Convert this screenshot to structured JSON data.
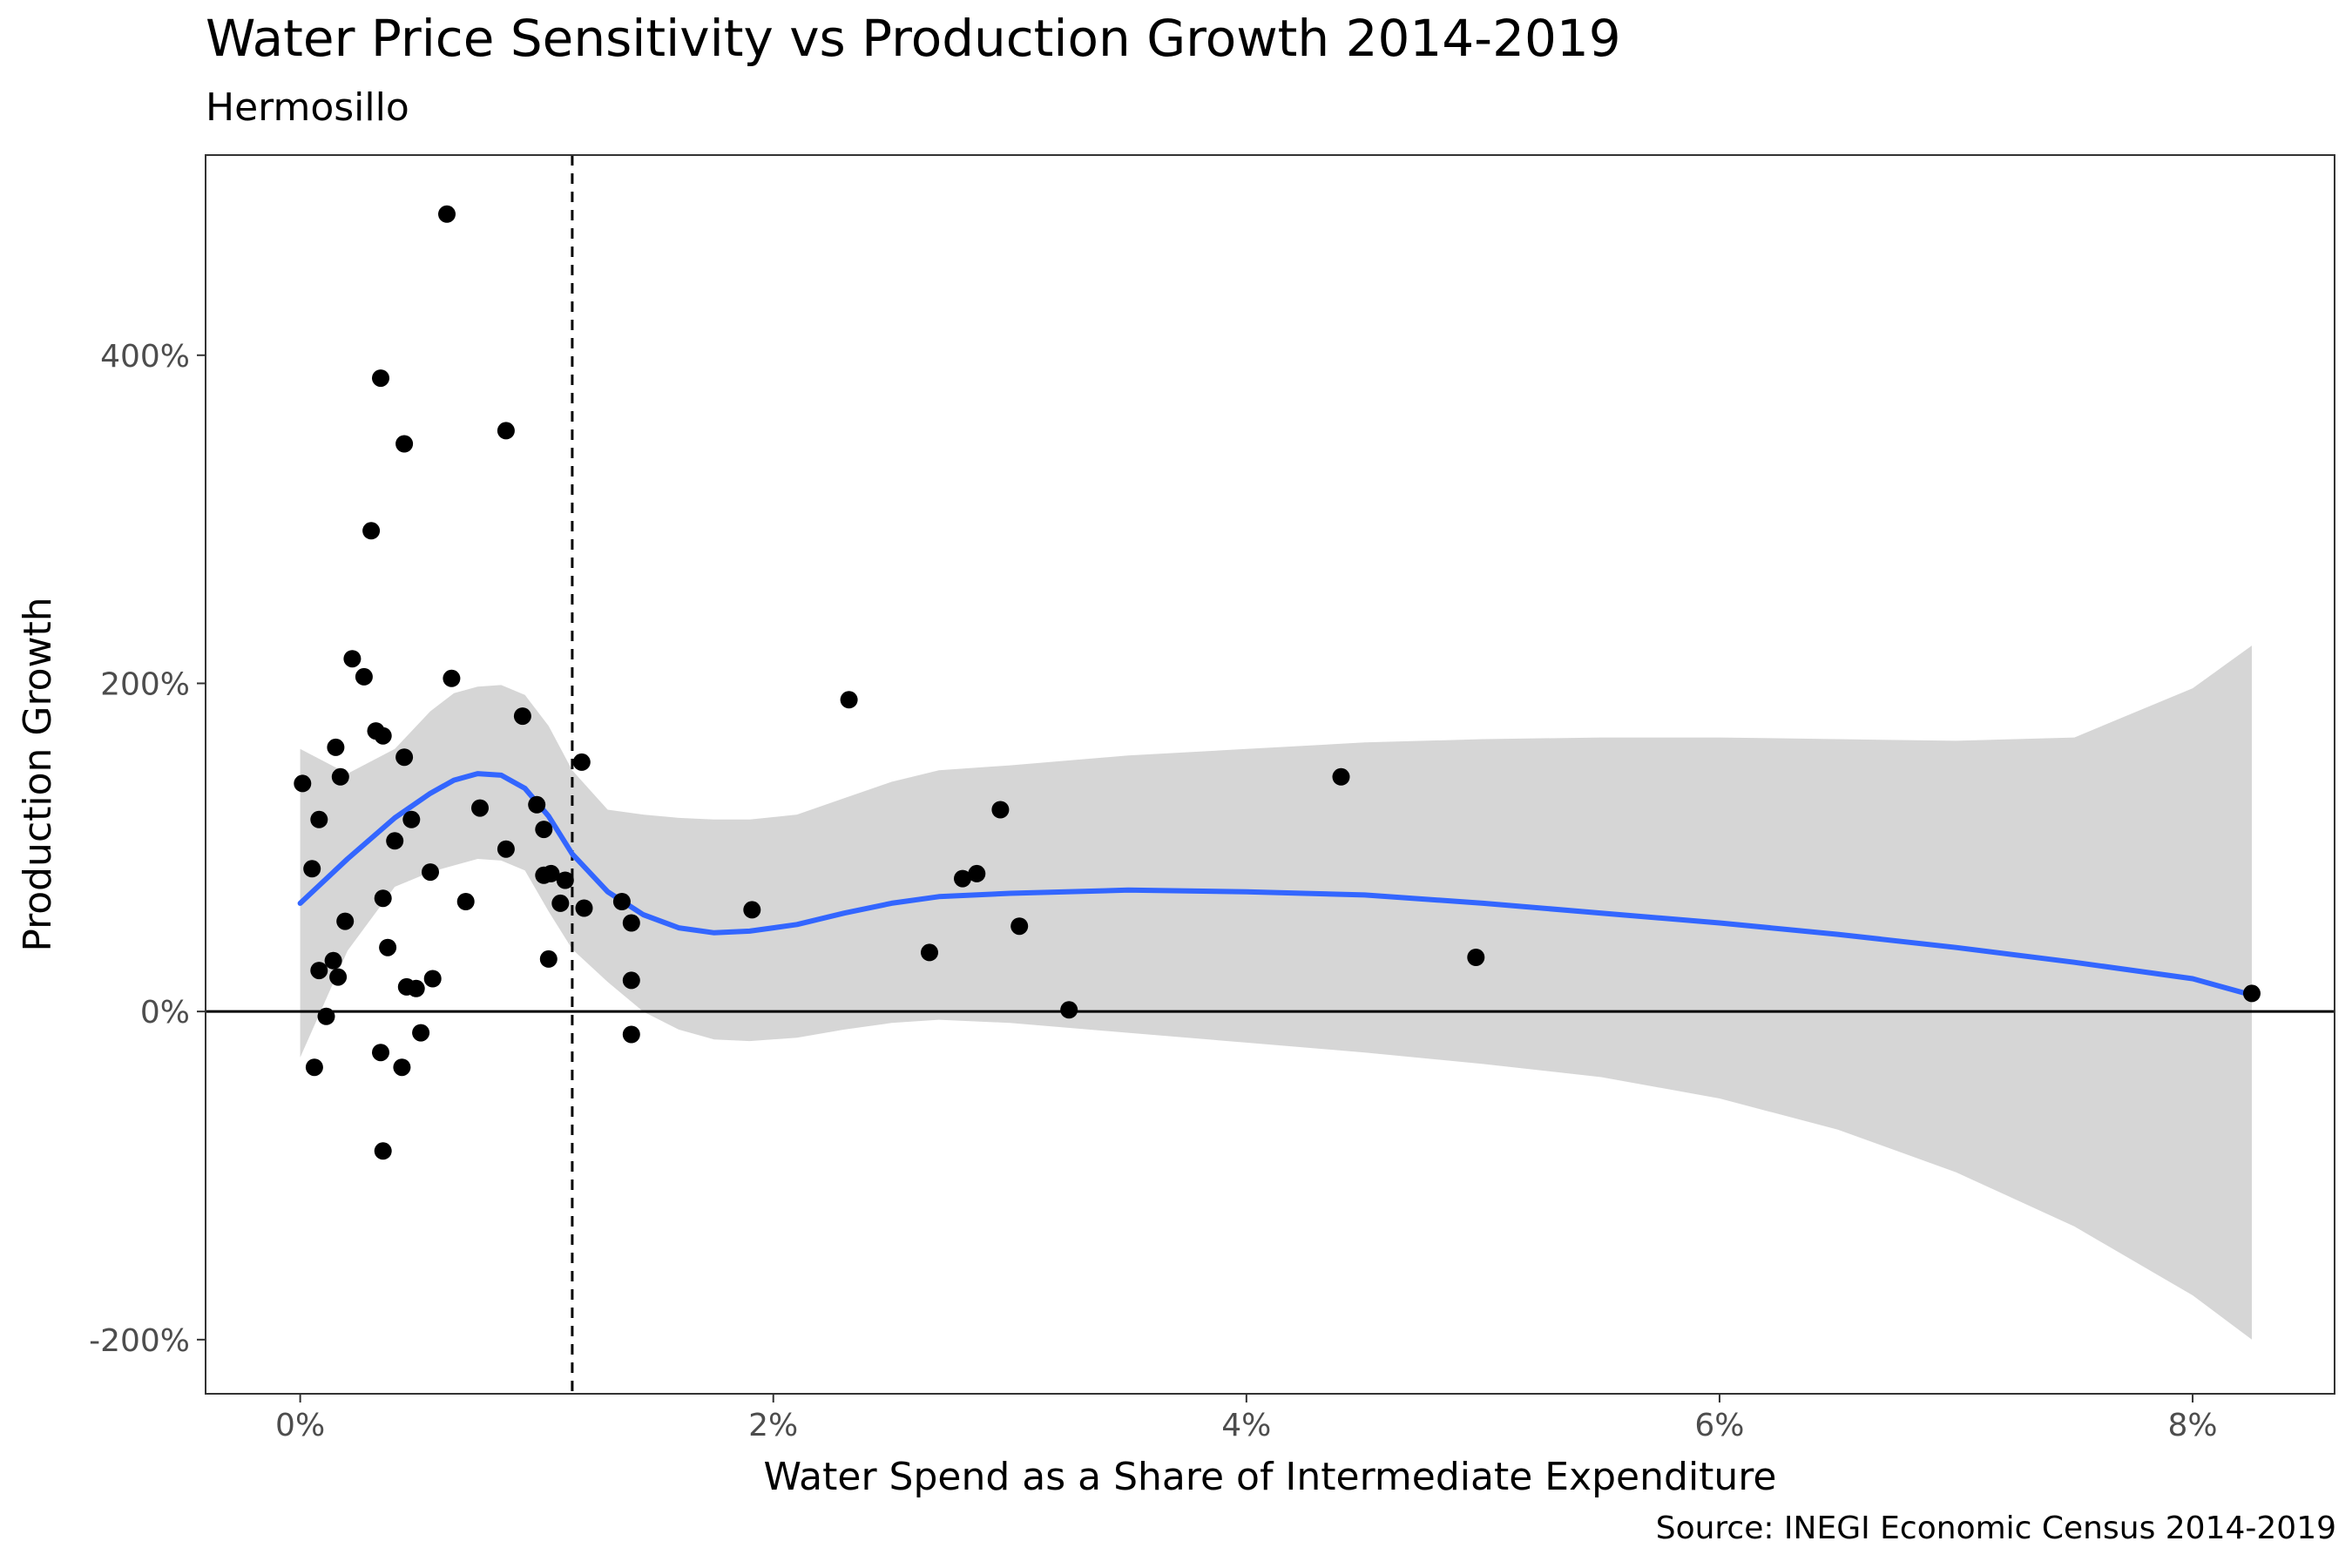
{
  "title": "Water Price Sensitivity vs Production Growth 2014-2019",
  "subtitle": "Hermosillo",
  "caption": "Source: INEGI Economic Census 2014-2019",
  "colors": {
    "points": "#000000",
    "smooth_line": "#3366FF",
    "ribbon": "#D6D6D6",
    "panel_border": "#333333"
  },
  "chart_data": {
    "type": "scatter",
    "xlabel": "Water Spend as a Share of Intermediate Expenditure",
    "ylabel": "Production Growth",
    "xlim": [
      -0.4,
      8.6
    ],
    "ylim": [
      -233,
      522
    ],
    "xticks": [
      0,
      2,
      4,
      6,
      8
    ],
    "xtick_labels": [
      "0%",
      "2%",
      "4%",
      "6%",
      "8%"
    ],
    "yticks": [
      -200,
      0,
      200,
      400
    ],
    "ytick_labels": [
      "-200%",
      "0%",
      "200%",
      "400%"
    ],
    "grid": false,
    "hline": 0,
    "vline": 1.15,
    "points": [
      {
        "x": 0.01,
        "y": 139
      },
      {
        "x": 0.05,
        "y": 87
      },
      {
        "x": 0.06,
        "y": -34
      },
      {
        "x": 0.08,
        "y": 117
      },
      {
        "x": 0.08,
        "y": 25
      },
      {
        "x": 0.11,
        "y": -3
      },
      {
        "x": 0.14,
        "y": 31
      },
      {
        "x": 0.15,
        "y": 161
      },
      {
        "x": 0.16,
        "y": 21
      },
      {
        "x": 0.17,
        "y": 143
      },
      {
        "x": 0.19,
        "y": 55
      },
      {
        "x": 0.22,
        "y": 215
      },
      {
        "x": 0.27,
        "y": 204
      },
      {
        "x": 0.3,
        "y": 293
      },
      {
        "x": 0.32,
        "y": 171
      },
      {
        "x": 0.34,
        "y": -25
      },
      {
        "x": 0.34,
        "y": 386
      },
      {
        "x": 0.35,
        "y": -85
      },
      {
        "x": 0.35,
        "y": 168
      },
      {
        "x": 0.35,
        "y": 69
      },
      {
        "x": 0.37,
        "y": 39
      },
      {
        "x": 0.4,
        "y": 104
      },
      {
        "x": 0.43,
        "y": -34
      },
      {
        "x": 0.44,
        "y": 346
      },
      {
        "x": 0.44,
        "y": 155
      },
      {
        "x": 0.45,
        "y": 15
      },
      {
        "x": 0.47,
        "y": 117
      },
      {
        "x": 0.49,
        "y": 14
      },
      {
        "x": 0.51,
        "y": -13
      },
      {
        "x": 0.55,
        "y": 85
      },
      {
        "x": 0.56,
        "y": 20
      },
      {
        "x": 0.62,
        "y": 486
      },
      {
        "x": 0.64,
        "y": 203
      },
      {
        "x": 0.7,
        "y": 67
      },
      {
        "x": 0.76,
        "y": 124
      },
      {
        "x": 0.87,
        "y": 354
      },
      {
        "x": 0.87,
        "y": 99
      },
      {
        "x": 0.94,
        "y": 180
      },
      {
        "x": 1.0,
        "y": 126
      },
      {
        "x": 1.03,
        "y": 111
      },
      {
        "x": 1.03,
        "y": 83
      },
      {
        "x": 1.05,
        "y": 32
      },
      {
        "x": 1.06,
        "y": 84
      },
      {
        "x": 1.1,
        "y": 66
      },
      {
        "x": 1.12,
        "y": 80
      },
      {
        "x": 1.19,
        "y": 152
      },
      {
        "x": 1.2,
        "y": 63
      },
      {
        "x": 1.36,
        "y": 67
      },
      {
        "x": 1.4,
        "y": 54
      },
      {
        "x": 1.4,
        "y": 19
      },
      {
        "x": 1.4,
        "y": -14
      },
      {
        "x": 1.91,
        "y": 62
      },
      {
        "x": 2.32,
        "y": 190
      },
      {
        "x": 2.66,
        "y": 36
      },
      {
        "x": 2.8,
        "y": 81
      },
      {
        "x": 2.86,
        "y": 84
      },
      {
        "x": 2.96,
        "y": 123
      },
      {
        "x": 3.04,
        "y": 52
      },
      {
        "x": 3.25,
        "y": 1
      },
      {
        "x": 4.4,
        "y": 143
      },
      {
        "x": 4.97,
        "y": 33
      },
      {
        "x": 8.25,
        "y": 11
      }
    ],
    "smooth": {
      "x": [
        0.0,
        0.2,
        0.4,
        0.55,
        0.65,
        0.75,
        0.85,
        0.95,
        1.05,
        1.15,
        1.3,
        1.45,
        1.6,
        1.75,
        1.9,
        2.1,
        2.3,
        2.5,
        2.7,
        3.0,
        3.5,
        4.0,
        4.5,
        5.0,
        5.5,
        6.0,
        6.5,
        7.0,
        7.5,
        8.0,
        8.25
      ],
      "y": [
        66,
        93,
        118,
        133,
        141,
        145,
        144,
        136,
        119,
        96,
        73,
        59,
        51,
        48,
        49,
        53,
        60,
        66,
        70,
        72,
        74,
        73,
        71,
        66,
        60,
        54,
        47,
        39,
        30,
        20,
        10
      ],
      "upper": [
        160,
        145,
        160,
        183,
        194,
        198,
        199,
        193,
        174,
        147,
        123,
        120,
        118,
        117,
        117,
        120,
        130,
        140,
        147,
        150,
        156,
        160,
        164,
        166,
        167,
        167,
        166,
        165,
        167,
        197,
        223
      ],
      "lower": [
        -28,
        37,
        76,
        85,
        89,
        93,
        92,
        86,
        61,
        38,
        18,
        0,
        -11,
        -17,
        -18,
        -16,
        -11,
        -7,
        -5,
        -7,
        -13,
        -19,
        -25,
        -32,
        -40,
        -53,
        -72,
        -98,
        -131,
        -173,
        -200
      ]
    }
  }
}
